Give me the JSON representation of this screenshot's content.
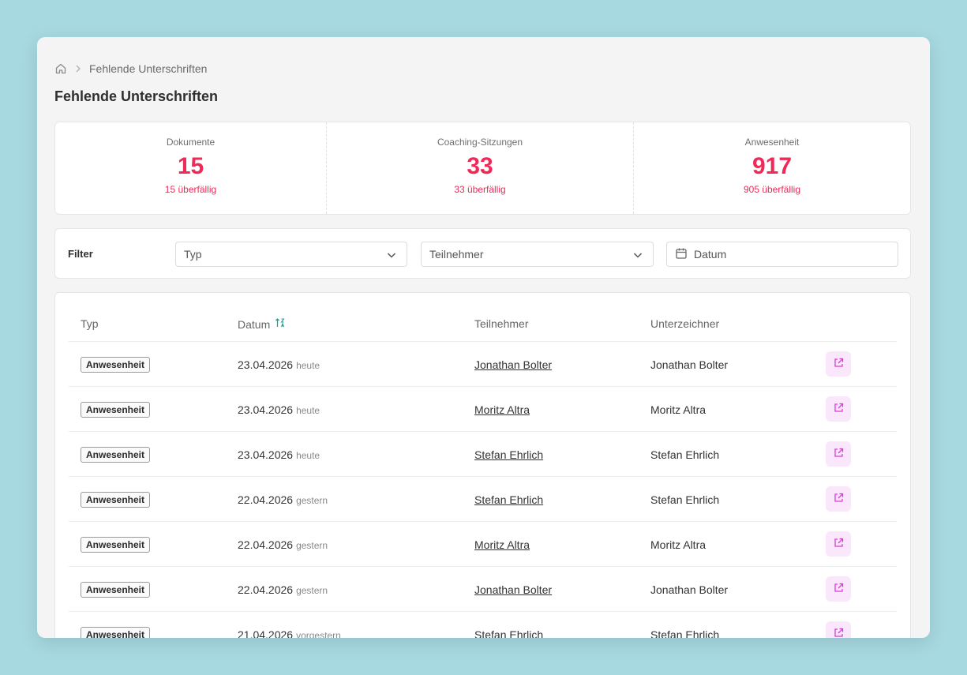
{
  "breadcrumb": {
    "current": "Fehlende Unterschriften"
  },
  "page": {
    "title": "Fehlende Unterschriften"
  },
  "stats": [
    {
      "label": "Dokumente",
      "value": "15",
      "sub": "15 überfällig"
    },
    {
      "label": "Coaching-Sitzungen",
      "value": "33",
      "sub": "33 überfällig"
    },
    {
      "label": "Anwesenheit",
      "value": "917",
      "sub": "905 überfällig"
    }
  ],
  "filters": {
    "label": "Filter",
    "type_placeholder": "Typ",
    "participant_placeholder": "Teilnehmer",
    "date_placeholder": "Datum"
  },
  "table": {
    "columns": {
      "type": "Typ",
      "date": "Datum",
      "participant": "Teilnehmer",
      "signer": "Unterzeichner"
    },
    "rows": [
      {
        "type": "Anwesenheit",
        "date": "23.04.2026",
        "rel": "heute",
        "participant": "Jonathan Bolter",
        "signer": "Jonathan Bolter"
      },
      {
        "type": "Anwesenheit",
        "date": "23.04.2026",
        "rel": "heute",
        "participant": "Moritz Altra",
        "signer": "Moritz Altra"
      },
      {
        "type": "Anwesenheit",
        "date": "23.04.2026",
        "rel": "heute",
        "participant": "Stefan Ehrlich",
        "signer": "Stefan Ehrlich"
      },
      {
        "type": "Anwesenheit",
        "date": "22.04.2026",
        "rel": "gestern",
        "participant": "Stefan Ehrlich",
        "signer": "Stefan Ehrlich"
      },
      {
        "type": "Anwesenheit",
        "date": "22.04.2026",
        "rel": "gestern",
        "participant": "Moritz Altra",
        "signer": "Moritz Altra"
      },
      {
        "type": "Anwesenheit",
        "date": "22.04.2026",
        "rel": "gestern",
        "participant": "Jonathan Bolter",
        "signer": "Jonathan Bolter"
      },
      {
        "type": "Anwesenheit",
        "date": "21.04.2026",
        "rel": "vorgestern",
        "participant": "Stefan Ehrlich",
        "signer": "Stefan Ehrlich"
      }
    ]
  },
  "colors": {
    "accent": "#ef2a58",
    "action": "#d63fd6",
    "sort": "#1aa39a"
  },
  "icons": {
    "home": "home-icon",
    "chevron": "chevron-right-icon",
    "dropdown": "chevron-down-icon",
    "calendar": "calendar-icon",
    "sort": "sort-icon",
    "open": "external-link-icon"
  }
}
